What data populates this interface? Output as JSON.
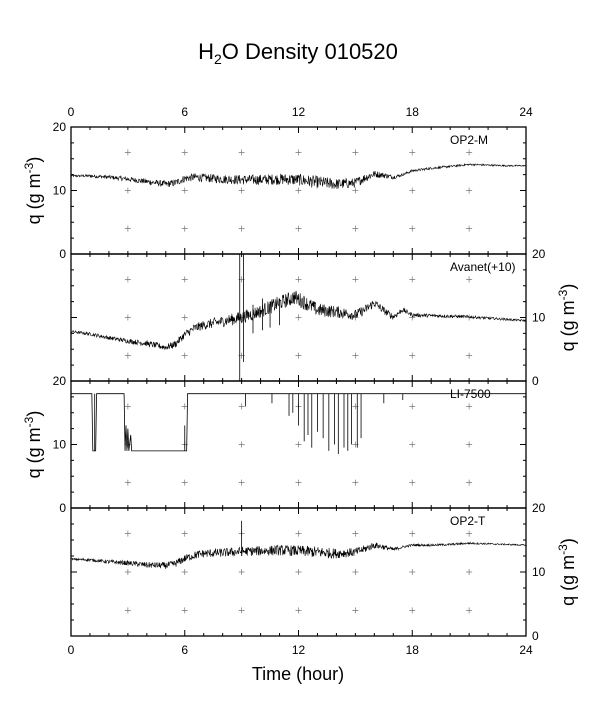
{
  "chart_data": {
    "type": "line",
    "title": {
      "prefix": "H",
      "sub": "2",
      "suffix": "O Density 010520"
    },
    "xlabel": "Time (hour)",
    "xlim": [
      0,
      24
    ],
    "x_ticks": [
      "0",
      "6",
      "12",
      "18",
      "24"
    ],
    "ylabel": {
      "main": "q (g m",
      "sup": "-3",
      "close": ")"
    },
    "grid": "crosses",
    "panels": [
      {
        "name": "OP2-M",
        "ylim": [
          0,
          20
        ],
        "y_axis_side": "left",
        "y_ticks": [
          "0",
          "10",
          "20"
        ],
        "noise": [
          [
            0,
            0.15
          ],
          [
            6,
            0.6
          ],
          [
            13,
            1.0
          ],
          [
            15.5,
            0.7
          ],
          [
            17.5,
            0.2
          ],
          [
            24,
            0.1
          ]
        ],
        "x": [
          0,
          1,
          2,
          3,
          4,
          5,
          5.5,
          6,
          6.5,
          7,
          8,
          9,
          10,
          11,
          12,
          13,
          14,
          15,
          15.5,
          16,
          16.5,
          17,
          17.5,
          18,
          19,
          20,
          21,
          22,
          23,
          24
        ],
        "y": [
          12.3,
          12.3,
          12.1,
          11.8,
          11.4,
          11.0,
          11.2,
          11.9,
          12.1,
          12.0,
          11.8,
          11.7,
          11.7,
          11.8,
          11.7,
          11.3,
          11.0,
          11.2,
          12.0,
          12.6,
          12.4,
          12.1,
          12.5,
          13.1,
          13.5,
          13.8,
          14.1,
          14.0,
          13.9,
          13.9
        ]
      },
      {
        "name": "Avanet(+10)",
        "ylim": [
          0,
          20
        ],
        "y_axis_side": "right",
        "y_ticks": [
          "0",
          "10",
          "20"
        ],
        "noise": [
          [
            0,
            0.2
          ],
          [
            5,
            0.5
          ],
          [
            9,
            1.0
          ],
          [
            12,
            1.2
          ],
          [
            16,
            0.7
          ],
          [
            18,
            0.3
          ],
          [
            24,
            0.15
          ]
        ],
        "x": [
          0,
          1,
          2,
          3,
          4,
          5,
          5.5,
          6,
          6.5,
          7,
          8,
          9,
          10,
          11,
          11.8,
          12.5,
          13,
          14,
          15,
          15.5,
          16,
          16.5,
          17,
          17.5,
          18,
          19,
          20,
          21,
          22,
          23,
          24
        ],
        "y": [
          7.8,
          7.4,
          6.8,
          6.3,
          5.9,
          5.3,
          5.8,
          7.3,
          8.3,
          8.8,
          9.4,
          10.0,
          11.0,
          12.3,
          13.2,
          12.1,
          11.2,
          10.9,
          10.4,
          11.2,
          12.3,
          11.1,
          10.1,
          11.2,
          10.4,
          10.3,
          10.2,
          10.1,
          9.9,
          9.7,
          9.5
        ],
        "spikes": [
          {
            "x": 8.9,
            "y0": 0,
            "y1": 20
          },
          {
            "x": 9.1,
            "y0": 3,
            "y1": 20
          },
          {
            "x": 9.6,
            "y0": 7.5,
            "y1": 12
          },
          {
            "x": 10.1,
            "y0": 8,
            "y1": 13
          },
          {
            "x": 10.5,
            "y0": 8.4,
            "y1": 12.5
          },
          {
            "x": 11.0,
            "y0": 8.8,
            "y1": 13
          }
        ]
      },
      {
        "name": "LI-7500",
        "ylim": [
          0,
          20
        ],
        "y_axis_side": "left",
        "y_ticks": [
          "0",
          "10",
          "20"
        ],
        "noise": [
          [
            0,
            0
          ],
          [
            24,
            0
          ]
        ],
        "x": [
          0,
          1.1,
          1.15,
          1.3,
          1.35,
          2.8,
          2.85,
          2.9,
          2.95,
          3.0,
          3.05,
          3.15,
          3.2,
          6.1,
          6.15,
          24
        ],
        "y": [
          18,
          18,
          9,
          9,
          18,
          18,
          9,
          13,
          9,
          12.5,
          9,
          11.5,
          9,
          9,
          18,
          18
        ],
        "spikes": [
          {
            "x": 1.25,
            "y0": 9,
            "y1": 18
          },
          {
            "x": 6.0,
            "y0": 9,
            "y1": 13
          },
          {
            "x": 9.2,
            "y0": 16,
            "y1": 18
          },
          {
            "x": 10.6,
            "y0": 16.5,
            "y1": 18
          },
          {
            "x": 11.5,
            "y0": 14.5,
            "y1": 18
          },
          {
            "x": 11.7,
            "y0": 15,
            "y1": 18
          },
          {
            "x": 12.0,
            "y0": 13,
            "y1": 18
          },
          {
            "x": 12.3,
            "y0": 10.5,
            "y1": 18
          },
          {
            "x": 12.5,
            "y0": 11.5,
            "y1": 18
          },
          {
            "x": 12.7,
            "y0": 9.5,
            "y1": 18
          },
          {
            "x": 13.0,
            "y0": 12,
            "y1": 18
          },
          {
            "x": 13.3,
            "y0": 11,
            "y1": 18
          },
          {
            "x": 13.6,
            "y0": 9,
            "y1": 18
          },
          {
            "x": 13.9,
            "y0": 10,
            "y1": 18
          },
          {
            "x": 14.1,
            "y0": 8.5,
            "y1": 18
          },
          {
            "x": 14.4,
            "y0": 9.5,
            "y1": 18
          },
          {
            "x": 14.6,
            "y0": 9,
            "y1": 18
          },
          {
            "x": 14.8,
            "y0": 10,
            "y1": 18
          },
          {
            "x": 15.1,
            "y0": 9.5,
            "y1": 18
          },
          {
            "x": 15.3,
            "y0": 11,
            "y1": 18
          },
          {
            "x": 16.5,
            "y0": 16.5,
            "y1": 18
          },
          {
            "x": 17.5,
            "y0": 17,
            "y1": 18
          }
        ]
      },
      {
        "name": "OP2-T",
        "ylim": [
          0,
          20
        ],
        "y_axis_side": "right",
        "y_ticks": [
          "0",
          "10",
          "20"
        ],
        "noise": [
          [
            0,
            0.15
          ],
          [
            6,
            0.6
          ],
          [
            13,
            0.9
          ],
          [
            15.5,
            0.6
          ],
          [
            17.5,
            0.2
          ],
          [
            24,
            0.1
          ]
        ],
        "x": [
          0,
          1,
          2,
          3,
          4,
          5,
          5.5,
          6,
          6.5,
          7,
          8,
          9,
          10,
          11,
          12,
          13,
          14,
          15,
          15.5,
          16,
          16.5,
          17,
          17.5,
          18,
          19,
          20,
          21,
          22,
          23,
          24
        ],
        "y": [
          12.0,
          11.9,
          11.6,
          11.4,
          11.1,
          11.0,
          11.3,
          12.1,
          12.6,
          12.9,
          13.0,
          13.2,
          13.3,
          13.4,
          13.3,
          13.1,
          12.9,
          13.1,
          13.6,
          14.2,
          13.9,
          13.5,
          13.9,
          14.2,
          14.2,
          14.3,
          14.5,
          14.4,
          14.3,
          14.2
        ],
        "spikes": [
          {
            "x": 9.0,
            "y0": 12.5,
            "y1": 18
          }
        ]
      }
    ]
  }
}
